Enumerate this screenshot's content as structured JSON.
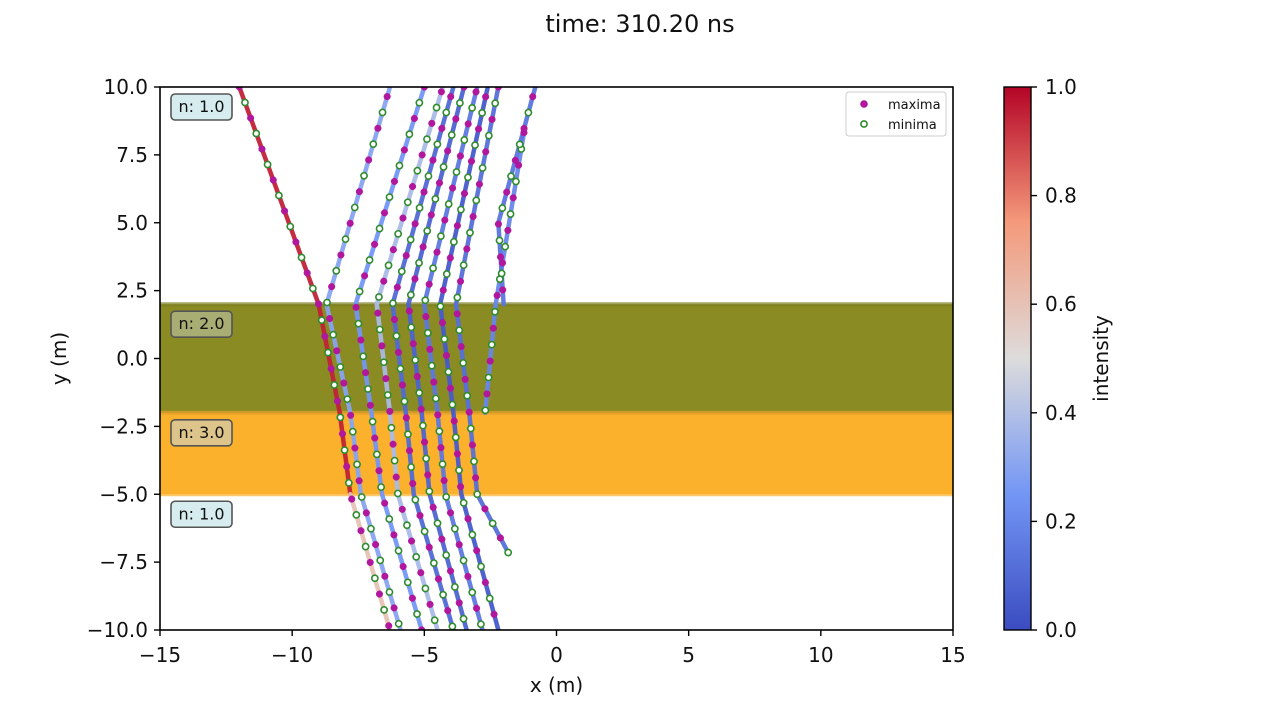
{
  "title": "time: 310.20 ns",
  "chart_data": {
    "type": "line",
    "xlabel": "x (m)",
    "ylabel": "y (m)",
    "xlim": [
      -15,
      15
    ],
    "ylim": [
      -10,
      10
    ],
    "xticks": [
      "−15",
      "−10",
      "−5",
      "0",
      "5",
      "10",
      "15"
    ],
    "yticks": [
      "−10.0",
      "−7.5",
      "−5.0",
      "−2.5",
      "0.0",
      "2.5",
      "5.0",
      "7.5",
      "10.0"
    ],
    "grid": false,
    "legend": {
      "placement": "top-right",
      "entries": [
        {
          "label": "maxima",
          "color": "#b0179d",
          "marker": "filled-circle"
        },
        {
          "label": "minima",
          "color": "#2e8b2e",
          "marker": "hollow-circle"
        }
      ]
    },
    "layers": [
      {
        "label": "n: 1.0",
        "y_range": [
          2.0,
          10.0
        ],
        "color": null
      },
      {
        "label": "n: 2.0",
        "y_range": [
          -2.0,
          2.0
        ],
        "color": "#8a8b22"
      },
      {
        "label": "n: 3.0",
        "y_range": [
          -5.0,
          -2.0
        ],
        "color": "#fbb12c"
      },
      {
        "label": "n: 1.0",
        "y_range": [
          -10.0,
          -5.0
        ],
        "color": null
      }
    ],
    "colorbar": {
      "label": "intensity",
      "range": [
        0.0,
        1.0
      ],
      "ticks": [
        "0.0",
        "0.2",
        "0.4",
        "0.6",
        "0.8",
        "1.0"
      ],
      "colormap": "coolwarm"
    },
    "rays": [
      {
        "intensity": 0.95,
        "points": [
          [
            -12.0,
            10.0
          ],
          [
            -9.0,
            2.0
          ],
          [
            -8.2,
            -2.0
          ],
          [
            -7.8,
            -5.0
          ]
        ]
      },
      {
        "intensity": 0.6,
        "points": [
          [
            -7.8,
            -5.0
          ],
          [
            -6.3,
            -10.0
          ]
        ]
      },
      {
        "intensity": 0.3,
        "points": [
          [
            -6.3,
            10.0
          ],
          [
            -8.7,
            2.0
          ],
          [
            -7.8,
            -2.0
          ],
          [
            -7.4,
            -5.0
          ],
          [
            -5.9,
            -10.0
          ]
        ]
      },
      {
        "intensity": 0.25,
        "points": [
          [
            -5.0,
            10.0
          ],
          [
            -7.6,
            2.0
          ],
          [
            -7.0,
            -2.0
          ],
          [
            -6.6,
            -5.0
          ],
          [
            -5.1,
            -10.0
          ]
        ]
      },
      {
        "intensity": 0.38,
        "points": [
          [
            -4.3,
            10.0
          ],
          [
            -6.8,
            2.0
          ],
          [
            -6.3,
            -2.0
          ],
          [
            -6.0,
            -5.0
          ],
          [
            -4.5,
            -10.0
          ]
        ]
      },
      {
        "intensity": 0.1,
        "points": [
          [
            -3.9,
            10.0
          ],
          [
            -6.2,
            2.0
          ],
          [
            -5.7,
            -2.0
          ],
          [
            -5.4,
            -5.0
          ],
          [
            -3.9,
            -10.0
          ]
        ]
      },
      {
        "intensity": 0.08,
        "points": [
          [
            -3.5,
            10.0
          ],
          [
            -5.6,
            2.0
          ],
          [
            -5.1,
            -2.0
          ],
          [
            -4.8,
            -5.0
          ],
          [
            -3.4,
            -10.0
          ]
        ]
      },
      {
        "intensity": 0.15,
        "points": [
          [
            -3.0,
            10.0
          ],
          [
            -5.0,
            2.0
          ],
          [
            -4.5,
            -2.0
          ],
          [
            -4.2,
            -5.0
          ],
          [
            -2.8,
            -10.0
          ]
        ]
      },
      {
        "intensity": 0.05,
        "points": [
          [
            -2.6,
            10.0
          ],
          [
            -4.4,
            2.0
          ],
          [
            -3.9,
            -2.0
          ],
          [
            -3.6,
            -5.0
          ],
          [
            -2.2,
            -10.0
          ]
        ]
      },
      {
        "intensity": 0.12,
        "points": [
          [
            -2.2,
            10.0
          ],
          [
            -3.8,
            2.0
          ],
          [
            -3.3,
            -2.0
          ],
          [
            -3.0,
            -5.0
          ],
          [
            -1.8,
            -7.2
          ]
        ]
      },
      {
        "intensity": 0.2,
        "points": [
          [
            -1.2,
            8.5
          ],
          [
            -2.3,
            2.0
          ],
          [
            -2.7,
            -2.0
          ]
        ]
      },
      {
        "intensity": 0.14,
        "points": [
          [
            -0.8,
            10.0
          ],
          [
            -2.2,
            5.0
          ],
          [
            -2.0,
            2.0
          ]
        ]
      }
    ]
  }
}
